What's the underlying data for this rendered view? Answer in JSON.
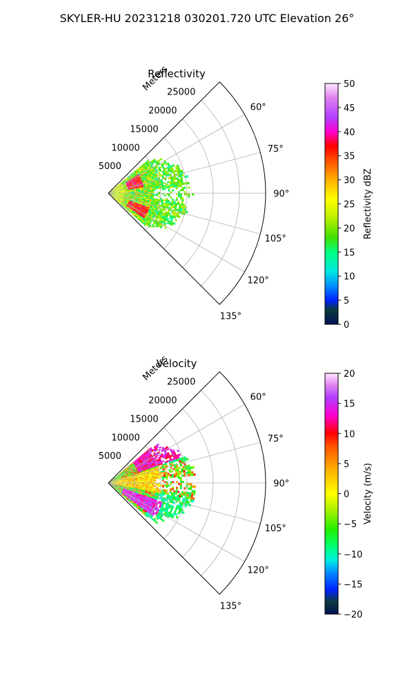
{
  "page_title": "SKYLER-HU  20231218  030201.720 UTC Elevation 26°",
  "chart_data": [
    {
      "type": "polar-sector",
      "title": "Reflectivity",
      "radial_label": "Meters",
      "radial_ticks": [
        5000,
        10000,
        15000,
        20000,
        25000
      ],
      "radial_tick_labels": [
        "5000",
        "10000",
        "15000",
        "20000",
        "25000"
      ],
      "rmax": 30000,
      "angle_range_deg": [
        45,
        135
      ],
      "angle_ticks": [
        60,
        75,
        90,
        105,
        120,
        135
      ],
      "angle_tick_labels": [
        "60°",
        "75°",
        "90°",
        "105°",
        "120°",
        "135°"
      ],
      "grid": true,
      "field": "reflectivity",
      "data_extent": {
        "angle_deg": [
          50,
          130
        ],
        "range_m": [
          0,
          16000
        ]
      },
      "colorbar": {
        "label": "Reflectivity dBZ",
        "vmin": 0,
        "vmax": 50,
        "ticks": [
          0,
          5,
          10,
          15,
          20,
          25,
          30,
          35,
          40,
          45,
          50
        ],
        "tick_labels": [
          "0",
          "5",
          "10",
          "15",
          "20",
          "25",
          "30",
          "35",
          "40",
          "45",
          "50"
        ],
        "stops": [
          {
            "value": 0,
            "color": "#001055"
          },
          {
            "value": 3,
            "color": "#0a3a3a"
          },
          {
            "value": 5,
            "color": "#0022ff"
          },
          {
            "value": 8,
            "color": "#0090ff"
          },
          {
            "value": 11,
            "color": "#00e8e0"
          },
          {
            "value": 15,
            "color": "#00ff80"
          },
          {
            "value": 18,
            "color": "#40e000"
          },
          {
            "value": 22,
            "color": "#b8f000"
          },
          {
            "value": 26,
            "color": "#ffff00"
          },
          {
            "value": 30,
            "color": "#ffb000"
          },
          {
            "value": 34,
            "color": "#ff5000"
          },
          {
            "value": 37,
            "color": "#ff0000"
          },
          {
            "value": 40,
            "color": "#ff00d0"
          },
          {
            "value": 43,
            "color": "#b040ff"
          },
          {
            "value": 47,
            "color": "#e080f0"
          },
          {
            "value": 50,
            "color": "#ffe8ff"
          }
        ]
      }
    },
    {
      "type": "polar-sector",
      "title": "Velocity",
      "radial_label": "Meters",
      "radial_ticks": [
        5000,
        10000,
        15000,
        20000,
        25000
      ],
      "radial_tick_labels": [
        "5000",
        "10000",
        "15000",
        "20000",
        "25000"
      ],
      "rmax": 30000,
      "angle_range_deg": [
        45,
        135
      ],
      "angle_ticks": [
        60,
        75,
        90,
        105,
        120,
        135
      ],
      "angle_tick_labels": [
        "60°",
        "75°",
        "90°",
        "105°",
        "120°",
        "135°"
      ],
      "grid": true,
      "field": "velocity",
      "data_extent": {
        "angle_deg": [
          50,
          130
        ],
        "range_m": [
          0,
          17000
        ]
      },
      "colorbar": {
        "label": "Velocity (m/s)",
        "vmin": -20,
        "vmax": 20,
        "ticks": [
          -20,
          -15,
          -10,
          -5,
          0,
          5,
          10,
          15,
          20
        ],
        "tick_labels": [
          "−20",
          "−15",
          "−10",
          "−5",
          "0",
          "5",
          "10",
          "15",
          "20"
        ],
        "stops": [
          {
            "value": -20,
            "color": "#001055"
          },
          {
            "value": -18,
            "color": "#0a3a3a"
          },
          {
            "value": -16,
            "color": "#0022ff"
          },
          {
            "value": -13,
            "color": "#0090ff"
          },
          {
            "value": -11,
            "color": "#00f0e0"
          },
          {
            "value": -9,
            "color": "#00ff80"
          },
          {
            "value": -6,
            "color": "#20f000"
          },
          {
            "value": -3,
            "color": "#a0f000"
          },
          {
            "value": 0,
            "color": "#ffff00"
          },
          {
            "value": 4,
            "color": "#ffb000"
          },
          {
            "value": 8,
            "color": "#ff5000"
          },
          {
            "value": 10,
            "color": "#ff0000"
          },
          {
            "value": 13,
            "color": "#ff00d0"
          },
          {
            "value": 16,
            "color": "#b040ff"
          },
          {
            "value": 18,
            "color": "#e080f0"
          },
          {
            "value": 20,
            "color": "#ffe8ff"
          }
        ]
      }
    }
  ]
}
